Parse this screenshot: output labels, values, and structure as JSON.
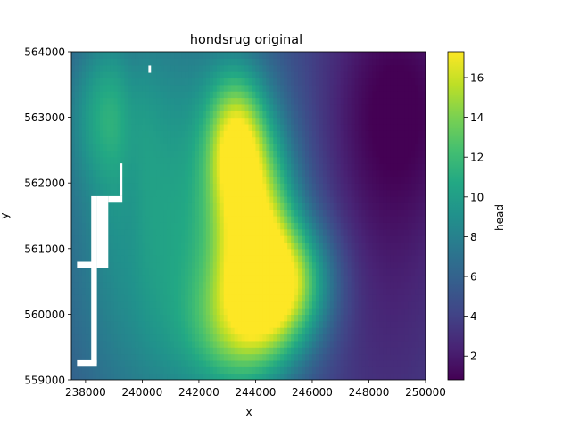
{
  "chart_data": {
    "type": "heatmap",
    "title": "hondsrug original",
    "xlabel": "x",
    "ylabel": "y",
    "xlim": [
      237500,
      250000
    ],
    "ylim": [
      559000,
      564000
    ],
    "x_ticks": [
      "238000",
      "240000",
      "242000",
      "244000",
      "246000",
      "248000",
      "250000"
    ],
    "x_tick_values": [
      238000,
      240000,
      242000,
      244000,
      246000,
      248000,
      250000
    ],
    "y_ticks": [
      "559000",
      "560000",
      "561000",
      "562000",
      "563000",
      "564000"
    ],
    "y_tick_values": [
      559000,
      560000,
      561000,
      562000,
      563000,
      564000
    ],
    "colormap": "viridis",
    "colorbar": {
      "label": "head",
      "vmin": 0.8,
      "vmax": 17.3,
      "ticks": [
        "2",
        "4",
        "6",
        "8",
        "10",
        "12",
        "14",
        "16"
      ],
      "tick_values": [
        2,
        4,
        6,
        8,
        10,
        12,
        14,
        16
      ]
    },
    "field_features": [
      {
        "kind": "peak",
        "x": 243900,
        "y": 561450,
        "value": 16.8
      },
      {
        "kind": "peak",
        "x": 245200,
        "y": 560500,
        "value": 16.0
      },
      {
        "kind": "ridge",
        "x": 243400,
        "y": 562700,
        "value": 13.5
      },
      {
        "kind": "ridge",
        "x": 243600,
        "y": 559800,
        "value": 12.0
      },
      {
        "kind": "low",
        "x": 248800,
        "y": 563400,
        "value": 1.0
      },
      {
        "kind": "low",
        "x": 248500,
        "y": 560500,
        "value": 2.8
      }
    ],
    "nodata": [
      {
        "x0": 238200,
        "x1": 238400,
        "y0": 559250,
        "y1": 561800
      },
      {
        "x0": 238400,
        "x1": 238800,
        "y0": 560700,
        "y1": 561800
      },
      {
        "x0": 237700,
        "x1": 238400,
        "y0": 560700,
        "y1": 560800
      },
      {
        "x0": 237700,
        "x1": 238400,
        "y0": 559200,
        "y1": 559300
      },
      {
        "x0": 238800,
        "x1": 239300,
        "y0": 561700,
        "y1": 561800
      },
      {
        "x0": 239200,
        "x1": 239300,
        "y0": 561800,
        "y1": 562300
      },
      {
        "x0": 240220,
        "x1": 240310,
        "y0": 563680,
        "y1": 563790
      }
    ],
    "grid": false
  }
}
